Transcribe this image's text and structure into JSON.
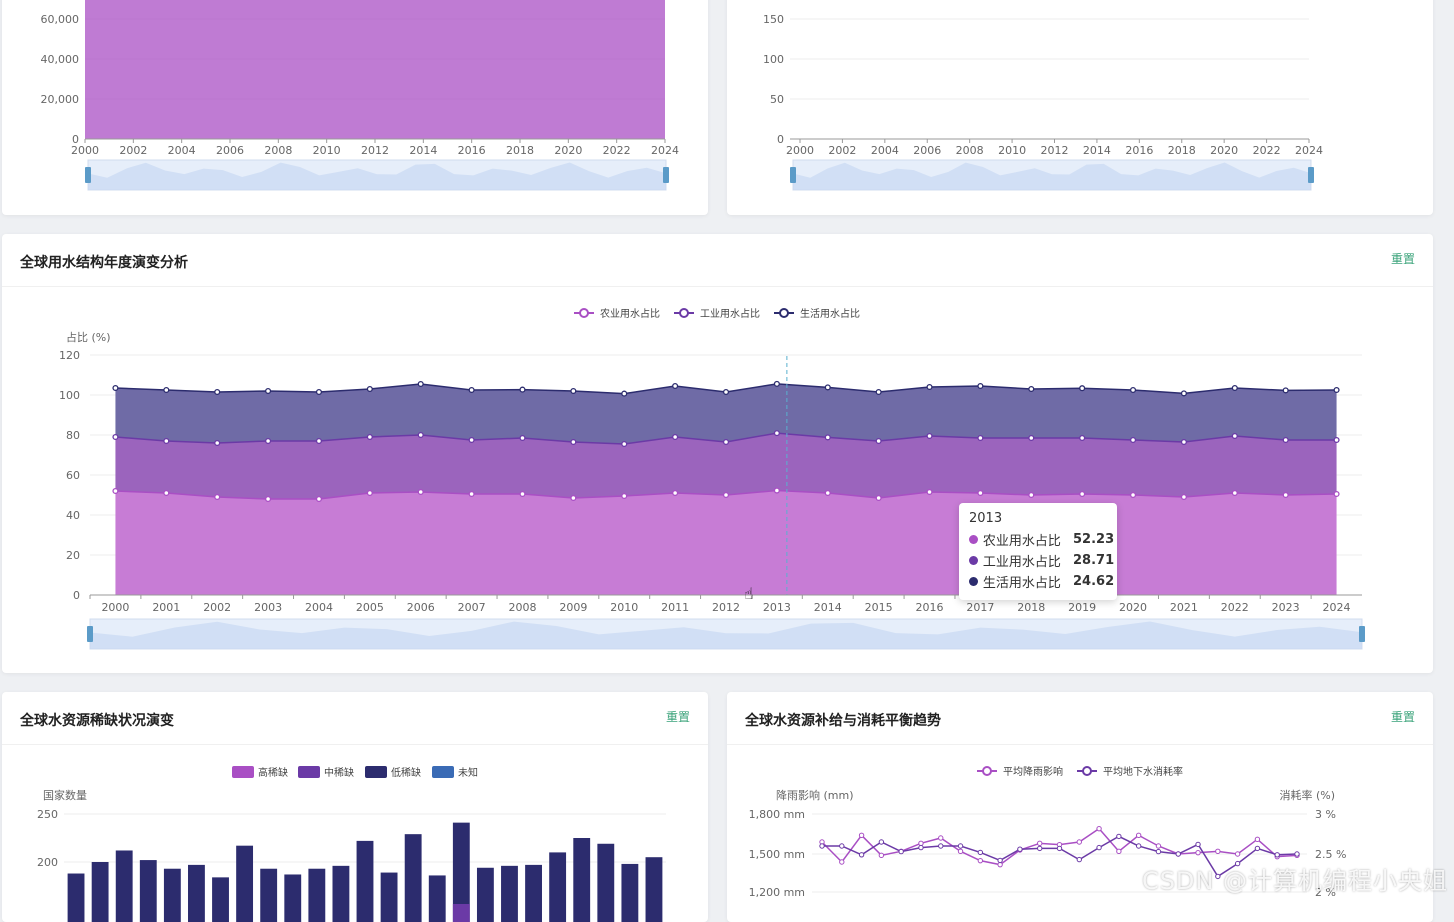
{
  "years_full": [
    "2000",
    "2001",
    "2002",
    "2003",
    "2004",
    "2005",
    "2006",
    "2007",
    "2008",
    "2009",
    "2010",
    "2011",
    "2012",
    "2013",
    "2014",
    "2015",
    "2016",
    "2017",
    "2018",
    "2019",
    "2020",
    "2021",
    "2022",
    "2023",
    "2024"
  ],
  "colors": {
    "agri": "#a94fc4",
    "ind": "#6b3aa6",
    "dom": "#2c2c6e",
    "reset": "#3aa37a",
    "scar_high": "#a94fc4",
    "scar_mid": "#6b3aa6",
    "scar_low": "#2c2c6e",
    "scar_unknown": "#3a6bb5"
  },
  "top_left": {
    "chart_data": {
      "type": "area",
      "x": [
        "2000",
        "2002",
        "2004",
        "2006",
        "2008",
        "2010",
        "2012",
        "2014",
        "2016",
        "2018",
        "2020",
        "2022",
        "2024"
      ],
      "y_ticks": [
        "0",
        "20,000",
        "40,000",
        "60,000"
      ],
      "ylim": [
        0,
        60000
      ],
      "note": "area fills above visible range"
    }
  },
  "top_right": {
    "chart_data": {
      "type": "line",
      "x": [
        "2000",
        "2002",
        "2004",
        "2006",
        "2008",
        "2010",
        "2012",
        "2014",
        "2016",
        "2018",
        "2020",
        "2022",
        "2024"
      ],
      "y_ticks": [
        "0",
        "50",
        "100",
        "150"
      ],
      "ylim": [
        0,
        150
      ]
    }
  },
  "structure": {
    "title": "全球用水结构年度演变分析",
    "reset": "重置",
    "legend": [
      "农业用水占比",
      "工业用水占比",
      "生活用水占比"
    ],
    "y_label": "占比 (%)",
    "chart_data": {
      "type": "area",
      "stacked": true,
      "categories": [
        "2000",
        "2001",
        "2002",
        "2003",
        "2004",
        "2005",
        "2006",
        "2007",
        "2008",
        "2009",
        "2010",
        "2011",
        "2012",
        "2013",
        "2014",
        "2015",
        "2016",
        "2017",
        "2018",
        "2019",
        "2020",
        "2021",
        "2022",
        "2023",
        "2024"
      ],
      "ylim": [
        0,
        120
      ],
      "y_ticks": [
        "0",
        "20",
        "40",
        "60",
        "80",
        "100",
        "120"
      ],
      "series": [
        {
          "name": "农业用水占比",
          "values": [
            52,
            51,
            49,
            48,
            48,
            51,
            51.5,
            50.5,
            50.5,
            48.5,
            49.5,
            51,
            50,
            52.23,
            51,
            48.5,
            51.5,
            51,
            50,
            50.5,
            50,
            49,
            51,
            50,
            50.5
          ]
        },
        {
          "name": "工业用水占比",
          "values": [
            27,
            26,
            27,
            29,
            29,
            28,
            28.5,
            27,
            28,
            28,
            26,
            28,
            26.5,
            28.71,
            27.8,
            28.5,
            28,
            27.5,
            28.5,
            28,
            27.5,
            27.5,
            28.5,
            27.5,
            27
          ]
        },
        {
          "name": "生活用水占比",
          "values": [
            24.5,
            25.5,
            25.5,
            25,
            24.5,
            24,
            25.5,
            25,
            24.2,
            25.5,
            25.2,
            25.5,
            25,
            24.62,
            25,
            24.5,
            24.5,
            26,
            24.5,
            24.9,
            25,
            24.3,
            24,
            24.8,
            25
          ]
        }
      ]
    },
    "tooltip": {
      "year": "2013",
      "rows": [
        {
          "name": "农业用水占比",
          "value": "52.23"
        },
        {
          "name": "工业用水占比",
          "value": "28.71"
        },
        {
          "name": "生活用水占比",
          "value": "24.62"
        }
      ]
    }
  },
  "scarcity": {
    "title": "全球水资源稀缺状况演变",
    "reset": "重置",
    "legend": [
      "高稀缺",
      "中稀缺",
      "低稀缺",
      "未知"
    ],
    "y_label": "国家数量",
    "chart_data": {
      "type": "bar",
      "stacked": true,
      "y_ticks": [
        "200",
        "250"
      ],
      "ylim_visible": [
        170,
        250
      ],
      "series": [
        {
          "name": "低稀缺",
          "values": [
            188,
            200,
            212,
            202,
            193,
            197,
            184,
            217,
            193,
            187,
            193,
            196,
            222,
            189,
            229,
            186,
            241,
            194,
            196,
            197,
            210,
            225,
            219,
            198,
            205
          ]
        }
      ],
      "highlight_index": 16
    }
  },
  "balance": {
    "title": "全球水资源补给与消耗平衡趋势",
    "reset": "重置",
    "legend": [
      "平均降雨影响",
      "平均地下水消耗率"
    ],
    "y_label_left": "降雨影响 (mm)",
    "y_label_right": "消耗率 (%)",
    "left_ticks": [
      "1,200 mm",
      "1,500 mm",
      "1,800 mm"
    ],
    "right_ticks": [
      "2 %",
      "2.5 %",
      "3 %"
    ],
    "chart_data": {
      "type": "line",
      "series": [
        {
          "name": "平均降雨影响",
          "values": [
            1590,
            1440,
            1640,
            1490,
            1520,
            1580,
            1620,
            1520,
            1450,
            1420,
            1530,
            1580,
            1570,
            1590,
            1690,
            1520,
            1640,
            1560,
            1500,
            1510,
            1520,
            1500,
            1610,
            1480,
            1490
          ]
        },
        {
          "name": "平均地下水消耗率",
          "values": [
            2.6,
            2.6,
            2.49,
            2.65,
            2.53,
            2.58,
            2.6,
            2.6,
            2.52,
            2.42,
            2.56,
            2.57,
            2.57,
            2.43,
            2.58,
            2.72,
            2.6,
            2.53,
            2.5,
            2.62,
            2.22,
            2.38,
            2.57,
            2.49,
            2.5
          ]
        }
      ]
    }
  },
  "watermark": "CSDN @计算机编程小央姐"
}
